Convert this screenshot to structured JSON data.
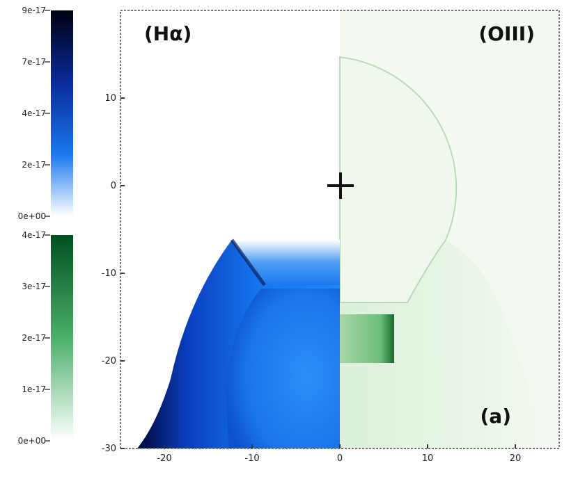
{
  "chart_data": {
    "type": "heatmap",
    "panels": [
      {
        "label": "(Hα)",
        "side": "left",
        "colormap": "blues"
      },
      {
        "label": "(OIII)",
        "side": "right",
        "colormap": "greens"
      }
    ],
    "annotation": "(a)",
    "x_ticks": [
      -20,
      -10,
      0,
      10,
      20
    ],
    "y_ticks": [
      10,
      0,
      -10,
      -20,
      -30
    ],
    "xlim": [
      -25,
      25
    ],
    "ylim": [
      -30,
      20
    ],
    "marker": {
      "x": 0,
      "y": 0,
      "symbol": "+"
    },
    "colorbars": [
      {
        "name": "blue",
        "ticks": [
          "9e-17",
          "7e-17",
          "4e-17",
          "2e-17",
          "0e+00"
        ],
        "colors": [
          "#000010",
          "#0a2a9a",
          "#1a78ee",
          "#ffffff"
        ]
      },
      {
        "name": "green",
        "ticks": [
          "4e-17",
          "3e-17",
          "2e-17",
          "1e-17",
          "0e+00"
        ],
        "colors": [
          "#005020",
          "#4caf6a",
          "#ffffff"
        ]
      }
    ],
    "grid": false
  }
}
